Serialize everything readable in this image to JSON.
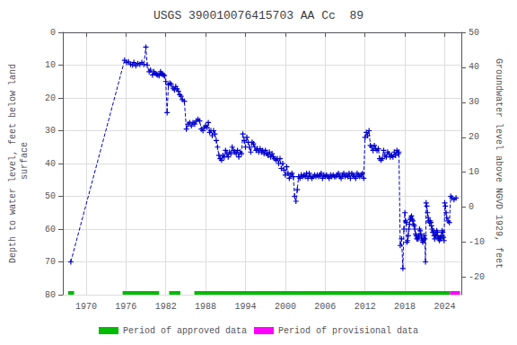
{
  "chart_data": {
    "type": "line",
    "title": "USGS 390010076415703 AA Cc  89",
    "ylabel": "Depth to water level, feet below land\n surface",
    "y2label": "Groundwater level above NGVD 1929, feet",
    "xlim": [
      1966.5,
      2026.5
    ],
    "xticks": [
      1970,
      1976,
      1982,
      1988,
      1994,
      2000,
      2006,
      2012,
      2018,
      2024
    ],
    "ylim": [
      80,
      0
    ],
    "yticks": [
      0,
      10,
      20,
      30,
      40,
      50,
      60,
      70,
      80
    ],
    "y2lim": [
      -25,
      50
    ],
    "y2ticks": [
      50,
      40,
      30,
      20,
      10,
      0,
      -10,
      -20
    ],
    "grid": true,
    "legend": "bottom",
    "x": [
      1967.7,
      1975.8,
      1976.1,
      1976.4,
      1976.7,
      1977.0,
      1977.2,
      1977.5,
      1977.8,
      1978.1,
      1978.4,
      1978.7,
      1979.0,
      1979.2,
      1979.5,
      1979.7,
      1980.0,
      1980.2,
      1980.4,
      1980.6,
      1980.8,
      1981.0,
      1981.2,
      1981.35,
      1981.5,
      1981.65,
      1981.8,
      1982.0,
      1982.2,
      1982.4,
      1982.6,
      1982.8,
      1983.1,
      1983.3,
      1983.5,
      1983.7,
      1983.9,
      1984.1,
      1984.3,
      1984.5,
      1984.8,
      1985.1,
      1985.35,
      1985.6,
      1985.85,
      1986.1,
      1986.35,
      1986.6,
      1986.85,
      1987.1,
      1987.35,
      1987.6,
      1987.85,
      1988.0,
      1988.2,
      1988.4,
      1988.6,
      1988.8,
      1989.0,
      1989.2,
      1989.4,
      1989.6,
      1989.8,
      1990.0,
      1990.2,
      1990.4,
      1990.6,
      1990.8,
      1991.0,
      1991.2,
      1991.4,
      1991.6,
      1991.8,
      1992.0,
      1992.2,
      1992.4,
      1992.6,
      1992.8,
      1993.0,
      1993.2,
      1993.4,
      1993.6,
      1993.8,
      1994.0,
      1994.2,
      1994.4,
      1994.6,
      1994.8,
      1995.0,
      1995.2,
      1995.4,
      1995.6,
      1995.8,
      1996.0,
      1996.2,
      1996.4,
      1996.6,
      1996.8,
      1997.0,
      1997.2,
      1997.4,
      1997.6,
      1997.8,
      1998.0,
      1998.2,
      1998.4,
      1998.6,
      1998.8,
      1999.0,
      1999.2,
      1999.4,
      1999.6,
      1999.8,
      2000.0,
      2000.2,
      2000.4,
      2000.6,
      2000.8,
      2001.0,
      2001.2,
      2001.4,
      2001.6,
      2001.8,
      2002.0,
      2002.2,
      2002.4,
      2002.6,
      2002.8,
      2003.0,
      2003.2,
      2003.4,
      2003.6,
      2003.8,
      2004.0,
      2004.2,
      2004.4,
      2004.6,
      2004.8,
      2005.0,
      2005.2,
      2005.4,
      2005.6,
      2005.8,
      2006.0,
      2006.2,
      2006.4,
      2006.6,
      2006.8,
      2007.0,
      2007.2,
      2007.4,
      2007.6,
      2007.8,
      2008.0,
      2008.2,
      2008.4,
      2008.6,
      2008.8,
      2009.0,
      2009.2,
      2009.4,
      2009.6,
      2009.8,
      2010.0,
      2010.2,
      2010.4,
      2010.6,
      2010.8,
      2011.0,
      2011.2,
      2011.4,
      2011.6,
      2011.8,
      2012.0,
      2012.2,
      2012.4,
      2012.6,
      2012.8,
      2013.0,
      2013.2,
      2013.4,
      2013.6,
      2013.8,
      2014.0,
      2014.2,
      2014.4,
      2014.6,
      2014.8,
      2015.0,
      2015.2,
      2015.4,
      2015.6,
      2015.8,
      2016.0,
      2016.2,
      2016.4,
      2016.6,
      2016.8,
      2017.0,
      2017.1,
      2017.3,
      2017.5,
      2017.7,
      2017.85,
      2018.0,
      2018.1,
      2018.2,
      2018.3,
      2018.4,
      2018.5,
      2018.6,
      2018.7,
      2018.8,
      2018.9,
      2019.0,
      2019.1,
      2019.2,
      2019.3,
      2019.4,
      2019.5,
      2019.6,
      2019.7,
      2019.8,
      2019.9,
      2020.0,
      2020.1,
      2020.2,
      2020.3,
      2020.4,
      2020.5,
      2020.6,
      2020.7,
      2020.8,
      2020.9,
      2021.0,
      2021.1,
      2021.2,
      2021.3,
      2021.4,
      2021.5,
      2021.6,
      2021.7,
      2021.8,
      2021.9,
      2022.0,
      2022.1,
      2022.2,
      2022.3,
      2022.4,
      2022.5,
      2022.6,
      2022.7,
      2022.8,
      2022.9,
      2023.0,
      2023.1,
      2023.2,
      2023.3,
      2023.4,
      2023.5,
      2023.6,
      2023.7,
      2023.8,
      2023.9,
      2024.0,
      2024.1,
      2024.2,
      2024.3,
      2024.5,
      2024.7,
      2024.9,
      2025.1,
      2025.4,
      2025.7
    ],
    "series": [
      {
        "color": "#0000cc",
        "marker": "plus",
        "line_style": "dashed",
        "values": [
          70.0,
          8.5,
          9.2,
          9.0,
          9.8,
          10.0,
          9.2,
          10.2,
          9.5,
          9.8,
          9.2,
          9.8,
          4.5,
          10.0,
          12.0,
          11.5,
          13.0,
          12.0,
          12.5,
          12.8,
          13.0,
          13.2,
          12.0,
          12.5,
          12.8,
          13.0,
          13.2,
          15.0,
          24.5,
          16.0,
          15.5,
          15.8,
          17.0,
          17.5,
          16.5,
          17.2,
          18.0,
          19.0,
          19.5,
          20.5,
          21.0,
          29.5,
          28.0,
          27.5,
          28.5,
          27.5,
          28.0,
          27.0,
          26.5,
          27.0,
          29.5,
          30.0,
          29.0,
          28.5,
          29.0,
          27.5,
          30.5,
          30.0,
          31.5,
          30.0,
          31.0,
          33.0,
          35.0,
          37.5,
          38.5,
          39.0,
          37.5,
          38.0,
          36.0,
          37.0,
          38.0,
          36.5,
          37.0,
          35.0,
          36.0,
          36.5,
          37.0,
          36.0,
          38.0,
          36.5,
          37.0,
          31.0,
          33.0,
          35.0,
          32.0,
          33.5,
          35.0,
          36.5,
          33.5,
          34.0,
          35.0,
          36.0,
          35.5,
          36.5,
          35.5,
          36.5,
          36.0,
          37.0,
          36.0,
          37.0,
          37.5,
          36.5,
          38.0,
          37.0,
          38.0,
          38.5,
          39.0,
          38.5,
          40.0,
          38.5,
          41.5,
          40.0,
          42.0,
          43.5,
          41.0,
          43.0,
          44.5,
          43.5,
          43.0,
          44.0,
          50.0,
          51.5,
          48.0,
          44.0,
          44.5,
          43.5,
          44.0,
          43.5,
          44.0,
          43.0,
          44.5,
          43.0,
          44.0,
          44.5,
          44.0,
          43.5,
          44.0,
          43.5,
          44.0,
          43.5,
          43.0,
          44.5,
          43.5,
          44.0,
          43.5,
          44.0,
          44.5,
          43.5,
          44.0,
          43.5,
          44.0,
          44.0,
          43.5,
          43.0,
          44.0,
          44.5,
          43.5,
          43.0,
          44.0,
          43.5,
          44.0,
          43.0,
          44.5,
          43.0,
          43.5,
          44.0,
          44.5,
          43.0,
          43.5,
          44.0,
          43.5,
          43.0,
          44.5,
          32.0,
          30.5,
          31.5,
          30.0,
          34.5,
          35.0,
          36.0,
          34.5,
          35.5,
          36.0,
          35.5,
          38.5,
          39.0,
          38.5,
          36.0,
          37.5,
          38.0,
          36.5,
          37.0,
          38.0,
          37.5,
          38.0,
          36.5,
          37.5,
          36.0,
          37.0,
          36.5,
          65.0,
          63.0,
          72.0,
          60.0,
          55.0,
          57.5,
          58.0,
          64.0,
          63.5,
          62.0,
          60.0,
          58.5,
          57.0,
          56.5,
          56.0,
          57.0,
          57.5,
          58.5,
          59.0,
          60.0,
          61.5,
          62.0,
          63.0,
          62.5,
          63.0,
          62.0,
          60.0,
          60.5,
          61.5,
          62.5,
          63.5,
          64.0,
          63.5,
          62.0,
          63.0,
          70.0,
          52.0,
          53.0,
          55.0,
          56.5,
          57.5,
          58.0,
          57.5,
          58.0,
          59.0,
          60.0,
          61.0,
          60.5,
          62.0,
          63.0,
          61.5,
          62.0,
          60.5,
          61.0,
          62.5,
          63.0,
          63.5,
          62.5,
          63.0,
          62.0,
          60.5,
          61.0,
          62.5,
          63.5,
          52.0,
          53.0,
          55.0,
          56.5,
          57.5,
          58.0,
          50.0,
          50.5,
          51.0,
          50.5
        ]
      },
      {
        "name": "Period of approved data",
        "type": "segments",
        "color": "#00bb00",
        "y": 80,
        "segments": [
          [
            1967.3,
            1968.2
          ],
          [
            1975.5,
            1981.0
          ],
          [
            1982.5,
            1984.2
          ],
          [
            1986.3,
            2024.8
          ]
        ]
      },
      {
        "name": "Period of provisional data",
        "type": "segments",
        "color": "#ff00ff",
        "y": 80,
        "segments": [
          [
            2024.8,
            2026.3
          ]
        ]
      }
    ]
  }
}
